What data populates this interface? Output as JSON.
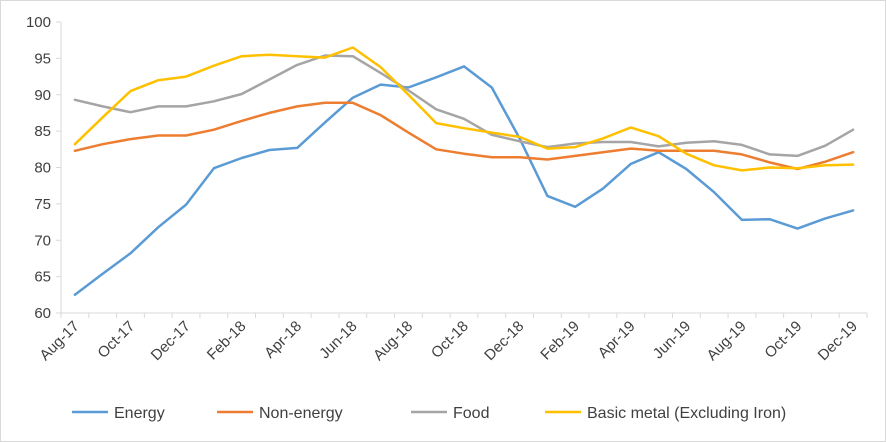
{
  "chart_data": {
    "type": "line",
    "title": "",
    "xlabel": "",
    "ylabel": "",
    "ylim": [
      60,
      100
    ],
    "yticks": [
      60,
      65,
      70,
      75,
      80,
      85,
      90,
      95,
      100
    ],
    "grid": false,
    "legend_position": "bottom",
    "categories": [
      "Aug-17",
      "Sep-17",
      "Oct-17",
      "Nov-17",
      "Dec-17",
      "Jan-18",
      "Feb-18",
      "Mar-18",
      "Apr-18",
      "May-18",
      "Jun-18",
      "Jul-18",
      "Aug-18",
      "Sep-18",
      "Oct-18",
      "Nov-18",
      "Dec-18",
      "Jan-19",
      "Feb-19",
      "Mar-19",
      "Apr-19",
      "May-19",
      "Jun-19",
      "Jul-19",
      "Aug-19",
      "Sep-19",
      "Oct-19",
      "Nov-19",
      "Dec-19"
    ],
    "xtick_labels": [
      "Aug-17",
      "Oct-17",
      "Dec-17",
      "Feb-18",
      "Apr-18",
      "Jun-18",
      "Aug-18",
      "Oct-18",
      "Dec-18",
      "Feb-19",
      "Apr-19",
      "Jun-19",
      "Aug-19",
      "Oct-19",
      "Dec-19"
    ],
    "series": [
      {
        "name": "Energy",
        "color": "#5b9bd5",
        "values": [
          62.5,
          65.4,
          68.2,
          71.8,
          74.9,
          79.9,
          81.3,
          82.4,
          82.7,
          86.2,
          89.6,
          91.4,
          91.0,
          92.4,
          93.9,
          91.0,
          84.0,
          76.1,
          74.6,
          77.1,
          80.5,
          82.1,
          79.8,
          76.6,
          72.8,
          72.9,
          71.6,
          73.0,
          74.1
        ]
      },
      {
        "name": "Non-energy",
        "color": "#ed7d31",
        "values": [
          82.3,
          83.2,
          83.9,
          84.4,
          84.4,
          85.2,
          86.4,
          87.5,
          88.4,
          88.9,
          88.9,
          87.2,
          84.8,
          82.5,
          81.9,
          81.4,
          81.4,
          81.1,
          81.6,
          82.1,
          82.6,
          82.3,
          82.3,
          82.3,
          81.8,
          80.7,
          79.8,
          80.8,
          82.1
        ]
      },
      {
        "name": "Food",
        "color": "#a5a5a5",
        "values": [
          89.3,
          88.4,
          87.6,
          88.4,
          88.4,
          89.1,
          90.1,
          92.1,
          94.1,
          95.4,
          95.3,
          93.0,
          90.6,
          88.0,
          86.7,
          84.5,
          83.6,
          82.8,
          83.3,
          83.5,
          83.5,
          82.9,
          83.4,
          83.6,
          83.1,
          81.8,
          81.6,
          83.0,
          85.2
        ]
      },
      {
        "name": "Basic metal (Excluding Iron)",
        "color": "#ffc000",
        "values": [
          83.2,
          86.9,
          90.5,
          92.0,
          92.5,
          94.0,
          95.3,
          95.5,
          95.3,
          95.1,
          96.5,
          93.8,
          90.0,
          86.1,
          85.4,
          84.8,
          84.2,
          82.6,
          82.8,
          84.0,
          85.5,
          84.3,
          81.9,
          80.3,
          79.6,
          80.0,
          79.9,
          80.3,
          80.4
        ]
      }
    ]
  }
}
